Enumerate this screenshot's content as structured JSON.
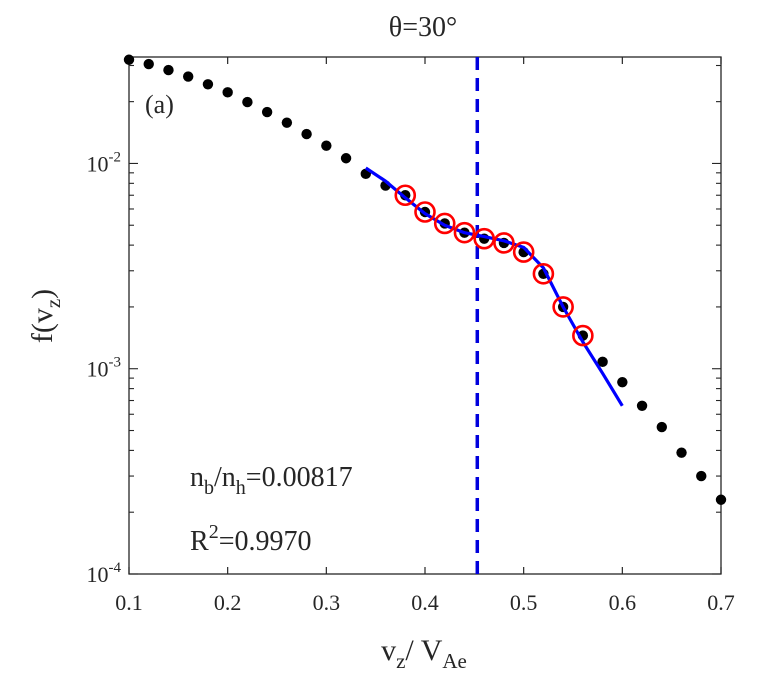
{
  "chart_data": {
    "type": "scatter",
    "title": "θ=30°",
    "panel_label": "(a)",
    "xlabel_main": "v",
    "xlabel_sub1": "z",
    "xlabel_mid": "/ V",
    "xlabel_sub2": "Ae",
    "ylabel_main": "f(v",
    "ylabel_sub": "z",
    "ylabel_end": ")",
    "xlim": [
      0.1,
      0.7
    ],
    "ylim": [
      0.0001,
      0.033
    ],
    "yscale": "log",
    "x_ticks": [
      {
        "value": 0.1,
        "label": "0.1"
      },
      {
        "value": 0.2,
        "label": "0.2"
      },
      {
        "value": 0.3,
        "label": "0.3"
      },
      {
        "value": 0.4,
        "label": "0.4"
      },
      {
        "value": 0.5,
        "label": "0.5"
      },
      {
        "value": 0.6,
        "label": "0.6"
      },
      {
        "value": 0.7,
        "label": "0.7"
      }
    ],
    "y_ticks": [
      {
        "value": 0.0001,
        "base": "10",
        "exp": "-4"
      },
      {
        "value": 0.001,
        "base": "10",
        "exp": "-3"
      },
      {
        "value": 0.01,
        "base": "10",
        "exp": "-2"
      }
    ],
    "series": [
      {
        "name": "distribution",
        "marker": "filled-circle",
        "color": "#000000",
        "x": [
          0.1,
          0.12,
          0.14,
          0.16,
          0.18,
          0.2,
          0.22,
          0.24,
          0.26,
          0.28,
          0.3,
          0.32,
          0.34,
          0.36,
          0.38,
          0.4,
          0.42,
          0.44,
          0.46,
          0.48,
          0.5,
          0.52,
          0.54,
          0.56,
          0.58,
          0.6,
          0.62,
          0.64,
          0.66,
          0.68,
          0.7
        ],
        "y": [
          0.032,
          0.0305,
          0.0285,
          0.0265,
          0.0243,
          0.0222,
          0.0199,
          0.0178,
          0.0158,
          0.0139,
          0.0122,
          0.0106,
          0.0089,
          0.0078,
          0.007,
          0.0058,
          0.0051,
          0.0046,
          0.0043,
          0.0041,
          0.0037,
          0.0029,
          0.002,
          0.00145,
          0.00108,
          0.00086,
          0.00066,
          0.00052,
          0.00039,
          0.0003,
          0.00023
        ]
      },
      {
        "name": "fit points",
        "marker": "open-circle",
        "color": "#ff0000",
        "x": [
          0.38,
          0.4,
          0.42,
          0.44,
          0.46,
          0.48,
          0.5,
          0.52,
          0.54,
          0.56
        ],
        "y": [
          0.007,
          0.0058,
          0.0051,
          0.0046,
          0.0043,
          0.0041,
          0.0037,
          0.0029,
          0.002,
          0.00145
        ]
      },
      {
        "name": "fit curve",
        "marker": "line",
        "color": "#0000ff",
        "x": [
          0.34,
          0.36,
          0.38,
          0.4,
          0.42,
          0.44,
          0.46,
          0.48,
          0.5,
          0.52,
          0.54,
          0.56,
          0.58,
          0.6
        ],
        "y": [
          0.0095,
          0.0082,
          0.0068,
          0.0057,
          0.005,
          0.0046,
          0.0044,
          0.0042,
          0.0039,
          0.0031,
          0.002,
          0.00135,
          0.00095,
          0.00066
        ]
      }
    ],
    "vline": {
      "x": 0.453,
      "color": "#0000dd",
      "style": "dashed"
    },
    "annotations": {
      "ratio_n1": "n",
      "ratio_s1": "b",
      "ratio_mid": "/n",
      "ratio_s2": "h",
      "ratio_value": "=0.00817",
      "r2_label": "R",
      "r2_sup": "2",
      "r2_value": "=0.9970"
    },
    "grid": false
  }
}
